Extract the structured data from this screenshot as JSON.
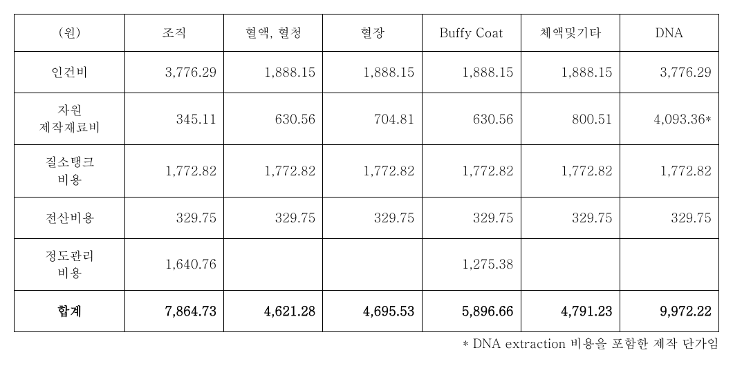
{
  "table": {
    "columns": [
      "(원)",
      "조직",
      "혈액, 혈청",
      "혈장",
      "Buffy Coat",
      "체액및기타",
      "DNA"
    ],
    "column_width_label": 160,
    "column_width_data": 143,
    "rows": [
      {
        "label": "인건비",
        "values": [
          "3,776.29",
          "1,888.15",
          "1,888.15",
          "1,888.15",
          "1,888.15",
          "3,776.29"
        ]
      },
      {
        "label": "자원\n제작재료비",
        "values": [
          "345.11",
          "630.56",
          "704.81",
          "630.56",
          "800.51",
          "4,093.36*"
        ]
      },
      {
        "label": "질소탱크\n비용",
        "values": [
          "1,772.82",
          "1,772.82",
          "1,772.82",
          "1,772.82",
          "1,772.82",
          "1,772.82"
        ]
      },
      {
        "label": "전산비용",
        "values": [
          "329.75",
          "329.75",
          "329.75",
          "329.75",
          "329.75",
          "329.75"
        ]
      },
      {
        "label": "정도관리\n비용",
        "values": [
          "1,640.76",
          "",
          "",
          "1,275.38",
          "",
          ""
        ]
      }
    ],
    "total": {
      "label": "합계",
      "values": [
        "7,864.73",
        "4,621.28",
        "4,695.53",
        "5,896.66",
        "4,791.23",
        "9,972.22"
      ]
    },
    "border_color": "#000000",
    "background_color": "#ffffff",
    "font_size": 18
  },
  "footnote": "* DNA extraction 비용을 포함한 제작 단가임"
}
